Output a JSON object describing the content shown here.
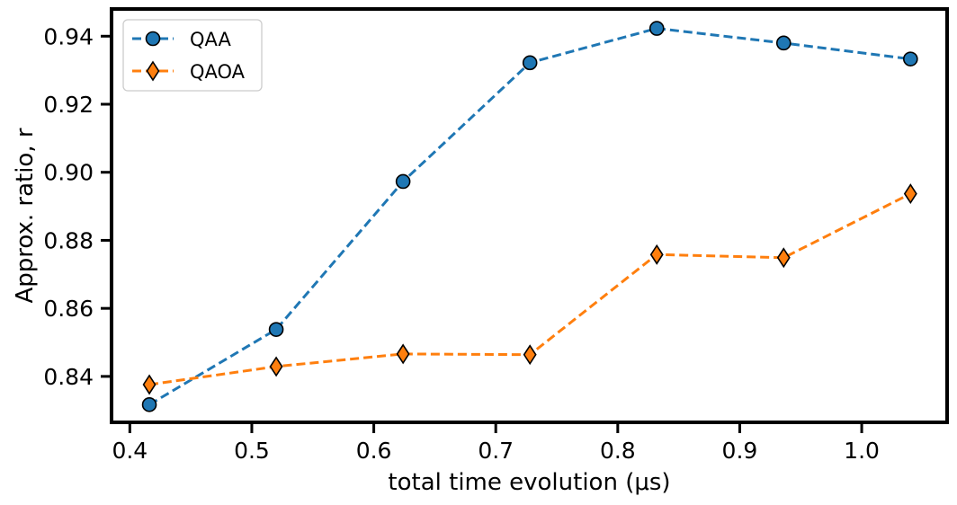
{
  "chart_data": {
    "type": "line",
    "title": "",
    "xlabel": "total time evolution (μs)",
    "ylabel": "Approx. ratio, r",
    "xlim": [
      0.385,
      1.07
    ],
    "ylim": [
      0.8265,
      0.948
    ],
    "xticks": [
      0.4,
      0.5,
      0.6,
      0.7,
      0.8,
      0.9,
      1.0
    ],
    "xtick_labels": [
      "0.4",
      "0.5",
      "0.6",
      "0.7",
      "0.8",
      "0.9",
      "1.0"
    ],
    "yticks": [
      0.84,
      0.86,
      0.88,
      0.9,
      0.92,
      0.94
    ],
    "ytick_labels": [
      "0.84",
      "0.86",
      "0.88",
      "0.90",
      "0.92",
      "0.94"
    ],
    "grid": false,
    "legend_position": "top-left",
    "x": [
      0.416,
      0.52,
      0.624,
      0.728,
      0.832,
      0.936,
      1.04
    ],
    "series": [
      {
        "name": "QAA",
        "marker": "circle",
        "line_style": "dashed",
        "color": "#1f77b4",
        "values": [
          0.8317,
          0.8538,
          0.8973,
          0.9322,
          0.9423,
          0.938,
          0.9333
        ]
      },
      {
        "name": "QAOA",
        "marker": "diamond",
        "line_style": "dashed",
        "color": "#ff7f0e",
        "values": [
          0.8376,
          0.8429,
          0.8466,
          0.8464,
          0.8758,
          0.8749,
          0.8937
        ]
      }
    ]
  }
}
